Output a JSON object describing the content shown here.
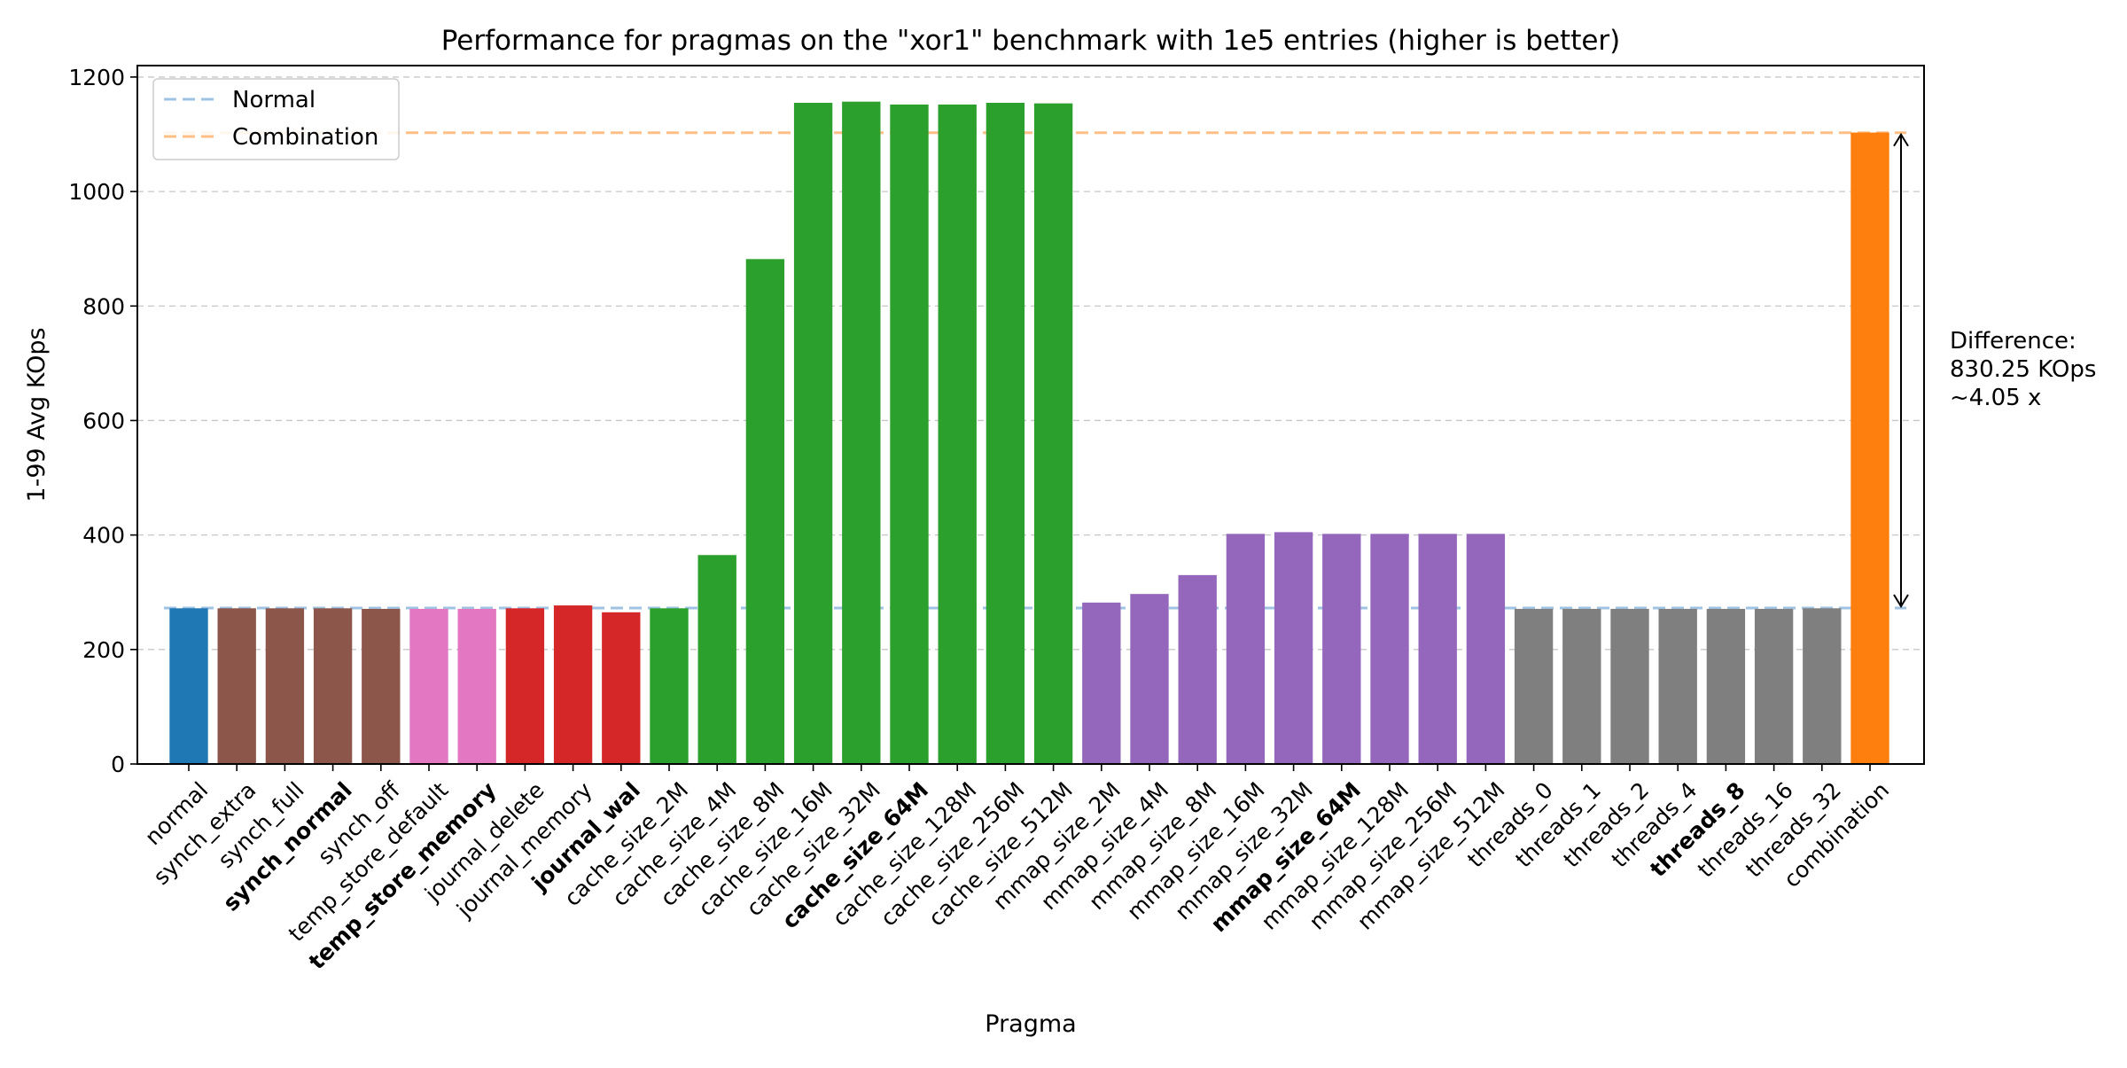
{
  "chart_data": {
    "type": "bar",
    "title": "Performance for pragmas on the \"xor1\" benchmark with 1e5 entries (higher is better)",
    "xlabel": "Pragma",
    "ylabel": "1-99 Avg KOps",
    "ylim": [
      0,
      1220
    ],
    "yticks": [
      0,
      200,
      400,
      600,
      800,
      1000,
      1200
    ],
    "grid": "y-dashed",
    "legend_position": "top-left",
    "categories": [
      "normal",
      "synch_extra",
      "synch_full",
      "synch_normal",
      "synch_off",
      "temp_store_default",
      "temp_store_memory",
      "journal_delete",
      "journal_memory",
      "journal_wal",
      "cache_size_2M",
      "cache_size_4M",
      "cache_size_8M",
      "cache_size_16M",
      "cache_size_32M",
      "cache_size_64M",
      "cache_size_128M",
      "cache_size_256M",
      "cache_size_512M",
      "mmap_size_2M",
      "mmap_size_4M",
      "mmap_size_8M",
      "mmap_size_16M",
      "mmap_size_32M",
      "mmap_size_64M",
      "mmap_size_128M",
      "mmap_size_256M",
      "mmap_size_512M",
      "threads_0",
      "threads_1",
      "threads_2",
      "threads_4",
      "threads_8",
      "threads_16",
      "threads_32",
      "combination"
    ],
    "values": [
      272,
      272,
      272,
      272,
      271,
      271,
      271,
      272,
      277,
      265,
      272,
      365,
      882,
      1155,
      1157,
      1152,
      1152,
      1155,
      1154,
      282,
      297,
      330,
      402,
      405,
      402,
      402,
      402,
      402,
      271,
      271,
      271,
      271,
      271,
      271,
      272,
      1103
    ],
    "bold_labels": [
      "synch_normal",
      "temp_store_memory",
      "journal_wal",
      "cache_size_64M",
      "mmap_size_64M",
      "threads_8"
    ],
    "group_colors": [
      "#1f77b4",
      "#8c564b",
      "#8c564b",
      "#8c564b",
      "#8c564b",
      "#e377c2",
      "#e377c2",
      "#d62728",
      "#d62728",
      "#d62728",
      "#2ca02c",
      "#2ca02c",
      "#2ca02c",
      "#2ca02c",
      "#2ca02c",
      "#2ca02c",
      "#2ca02c",
      "#2ca02c",
      "#2ca02c",
      "#9467bd",
      "#9467bd",
      "#9467bd",
      "#9467bd",
      "#9467bd",
      "#9467bd",
      "#9467bd",
      "#9467bd",
      "#9467bd",
      "#7f7f7f",
      "#7f7f7f",
      "#7f7f7f",
      "#7f7f7f",
      "#7f7f7f",
      "#7f7f7f",
      "#7f7f7f",
      "#ff7f0e"
    ],
    "reference_lines": [
      {
        "name": "Normal",
        "value": 272.44,
        "color": "#9fc3e3"
      },
      {
        "name": "Combination",
        "value": 1102.69,
        "color": "#ffbf87"
      }
    ],
    "annotation": {
      "lines": [
        "Difference:",
        "830.25 KOps",
        "~4.05 x"
      ],
      "from": 272.44,
      "to": 1102.69
    }
  }
}
